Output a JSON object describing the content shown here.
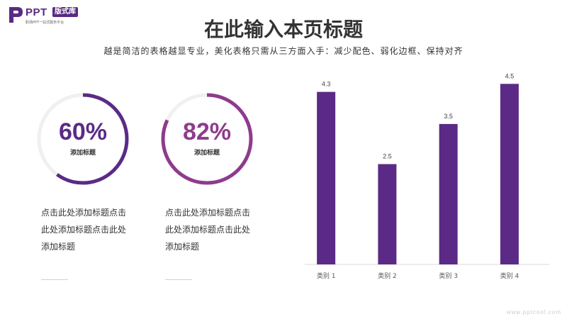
{
  "logo": {
    "brand": "PPT",
    "badge": "版式库",
    "tagline": "职场PPT一站式服务平台"
  },
  "header": {
    "title": "在此输入本页标题",
    "subtitle": "越是简洁的表格越显专业，美化表格只需从三方面入手：减少配色、弱化边框、保持对齐"
  },
  "metrics": [
    {
      "value": "60%",
      "fraction": 0.6,
      "label": "添加标题",
      "color": "#5b2a86",
      "description": "点击此处添加标题点击此处添加标题点击此处添加标题"
    },
    {
      "value": "82%",
      "fraction": 0.82,
      "label": "添加标题",
      "color": "#8e3b8d",
      "description": "点击此处添加标题点击此处添加标题点击此处添加标题"
    }
  ],
  "chart_data": {
    "type": "bar",
    "categories": [
      "类别 1",
      "类别 2",
      "类别 3",
      "类别 4"
    ],
    "values": [
      4.3,
      2.5,
      3.5,
      4.5
    ],
    "data_labels": [
      "4.3",
      "2.5",
      "3.5",
      "4.5"
    ],
    "ylim": [
      0,
      5
    ],
    "grid": false,
    "bar_color": "#5b2a86"
  },
  "watermark": "www.pptcool.com"
}
